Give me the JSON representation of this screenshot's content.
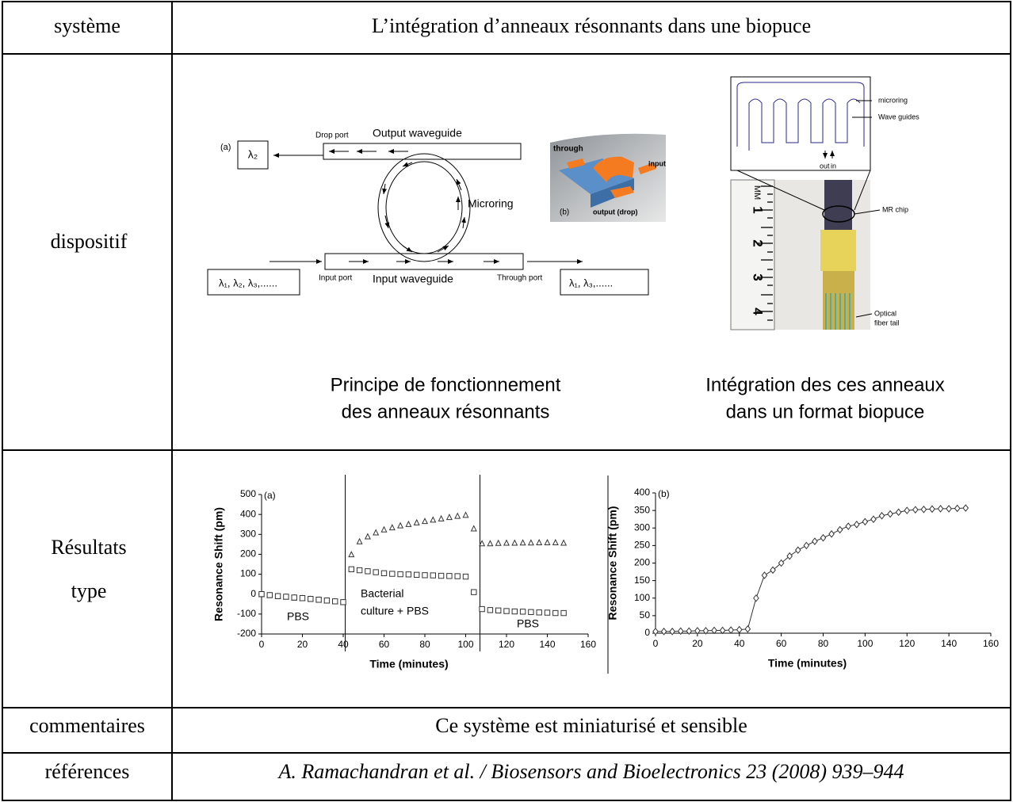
{
  "table": {
    "rows": [
      {
        "label": "système",
        "content": "L’intégration d’anneaux résonnants dans une biopuce"
      },
      {
        "label": "dispositif",
        "figures": [
          {
            "labels": {
              "panel_a": "(a)",
              "drop_port": "Drop port",
              "output_waveguide": "Output waveguide",
              "microring": "Microring",
              "input_port": "Input port",
              "input_waveguide": "Input waveguide",
              "through_port": "Through port",
              "out_lambda": "λ₂",
              "in_lambdas": "λ₁, λ₂, λ₃,......",
              "through_lambdas": "λ₁, λ₃,......",
              "through": "through",
              "input": "input",
              "panel_b": "(b)",
              "output_drop": "output (drop)"
            },
            "caption": [
              "Principe de fonctionnement",
              "des anneaux résonnants"
            ]
          },
          {
            "labels": {
              "microring": "microring",
              "wave_guides": "Wave guides",
              "out": "out",
              "in": "in",
              "mr_chip": "MR chip",
              "fiber": [
                "Optical",
                "fiber tail"
              ],
              "ruler_unit": "MM",
              "ruler_marks": [
                "1",
                "2",
                "3",
                "4"
              ]
            },
            "caption": [
              "Intégration des ces anneaux",
              "dans un format biopuce"
            ]
          }
        ]
      },
      {
        "label": [
          "Résultats",
          "type"
        ],
        "charts": [
          {
            "type": "scatter",
            "panel": "(a)",
            "x_label": "Time (minutes)",
            "y_label": "Resonance Shift (pm)",
            "xlim": [
              0,
              160
            ],
            "ylim": [
              -200,
              500
            ],
            "xticks": [
              0,
              20,
              40,
              60,
              80,
              100,
              120,
              140,
              160
            ],
            "yticks": [
              -200,
              -100,
              0,
              100,
              200,
              300,
              400,
              500
            ],
            "vlines": [
              41,
              107
            ],
            "annotations": [
              "PBS",
              "Bacterial",
              "culture  + PBS",
              "PBS"
            ],
            "x": [
              0,
              4,
              8,
              12,
              16,
              20,
              24,
              28,
              32,
              36,
              40,
              44,
              48,
              52,
              56,
              60,
              64,
              68,
              72,
              76,
              80,
              84,
              88,
              92,
              96,
              100,
              104,
              108,
              112,
              116,
              120,
              124,
              128,
              132,
              136,
              140,
              144,
              148
            ],
            "series": [
              {
                "marker": "triangle",
                "color": "#333333",
                "values": [
                  0,
                  -5,
                  -10,
                  -13,
                  -17,
                  -20,
                  -24,
                  -28,
                  -32,
                  -36,
                  -40,
                  200,
                  265,
                  290,
                  310,
                  325,
                  335,
                  345,
                  352,
                  360,
                  367,
                  374,
                  380,
                  387,
                  393,
                  398,
                  330,
                  255,
                  255,
                  257,
                  258,
                  258,
                  259,
                  259,
                  260,
                  260,
                  260,
                  258
                ]
              },
              {
                "marker": "square",
                "color": "#333333",
                "values": [
                  0,
                  -5,
                  -10,
                  -13,
                  -17,
                  -20,
                  -24,
                  -28,
                  -32,
                  -36,
                  -40,
                  125,
                  120,
                  115,
                  110,
                  105,
                  102,
                  100,
                  99,
                  97,
                  95,
                  94,
                  92,
                  91,
                  90,
                  88,
                  10,
                  -75,
                  -80,
                  -82,
                  -85,
                  -87,
                  -88,
                  -90,
                  -92,
                  -93,
                  -95,
                  -95
                ]
              }
            ]
          },
          {
            "type": "line",
            "panel": "(b)",
            "x_label": "Time (minutes)",
            "y_label": "Resonance Shift (pm)",
            "xlim": [
              0,
              160
            ],
            "ylim": [
              0,
              400
            ],
            "xticks": [
              0,
              20,
              40,
              60,
              80,
              100,
              120,
              140,
              160
            ],
            "yticks": [
              0,
              50,
              100,
              150,
              200,
              250,
              300,
              350,
              400
            ],
            "x": [
              0,
              4,
              8,
              12,
              16,
              20,
              24,
              28,
              32,
              36,
              40,
              44,
              48,
              52,
              56,
              60,
              64,
              68,
              72,
              76,
              80,
              84,
              88,
              92,
              96,
              100,
              104,
              108,
              112,
              116,
              120,
              124,
              128,
              132,
              136,
              140,
              144,
              148
            ],
            "series": [
              {
                "marker": "diamond",
                "color": "#333333",
                "values": [
                  5,
                  5,
                  5,
                  6,
                  6,
                  7,
                  7,
                  8,
                  8,
                  9,
                  10,
                  12,
                  100,
                  165,
                  180,
                  200,
                  220,
                  237,
                  250,
                  262,
                  272,
                  283,
                  295,
                  305,
                  310,
                  318,
                  325,
                  335,
                  340,
                  345,
                  350,
                  352,
                  353,
                  354,
                  355,
                  355,
                  356,
                  357
                ]
              }
            ]
          }
        ]
      },
      {
        "label": "commentaires",
        "content": "Ce système est miniaturisé et sensible"
      },
      {
        "label": "références",
        "content": "A. Ramachandran et al. / Biosensors and Bioelectronics 23 (2008) 939–944"
      }
    ]
  }
}
